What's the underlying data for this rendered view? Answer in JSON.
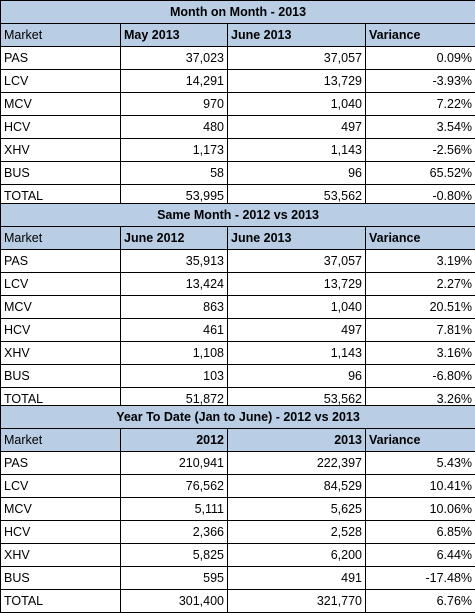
{
  "tables": [
    {
      "title": "Month on Month - 2013",
      "headers": [
        "Market",
        "May 2013",
        "June 2013",
        "Variance"
      ],
      "rows": [
        [
          "PAS",
          "37,023",
          "37,057",
          "0.09%"
        ],
        [
          "LCV",
          "14,291",
          "13,729",
          "-3.93%"
        ],
        [
          "MCV",
          "970",
          "1,040",
          "7.22%"
        ],
        [
          "HCV",
          "480",
          "497",
          "3.54%"
        ],
        [
          "XHV",
          "1,173",
          "1,143",
          "-2.56%"
        ],
        [
          "BUS",
          "58",
          "96",
          "65.52%"
        ],
        [
          "TOTAL",
          "53,995",
          "53,562",
          "-0.80%"
        ]
      ]
    },
    {
      "title": "Same Month - 2012 vs 2013",
      "headers": [
        "Market",
        "June 2012",
        "June 2013",
        "Variance"
      ],
      "rows": [
        [
          "PAS",
          "35,913",
          "37,057",
          "3.19%"
        ],
        [
          "LCV",
          "13,424",
          "13,729",
          "2.27%"
        ],
        [
          "MCV",
          "863",
          "1,040",
          "20.51%"
        ],
        [
          "HCV",
          "461",
          "497",
          "7.81%"
        ],
        [
          "XHV",
          "1,108",
          "1,143",
          "3.16%"
        ],
        [
          "BUS",
          "103",
          "96",
          "-6.80%"
        ],
        [
          "TOTAL",
          "51,872",
          "53,562",
          "3.26%"
        ]
      ]
    },
    {
      "title": "Year To Date (Jan to June) - 2012 vs 2013",
      "headers": [
        "Market",
        "2012",
        "2013",
        "Variance"
      ],
      "rows": [
        [
          "PAS",
          "210,941",
          "222,397",
          "5.43%"
        ],
        [
          "LCV",
          "76,562",
          "84,529",
          "10.41%"
        ],
        [
          "MCV",
          "5,111",
          "5,625",
          "10.06%"
        ],
        [
          "HCV",
          "2,366",
          "2,528",
          "6.85%"
        ],
        [
          "XHV",
          "5,825",
          "6,200",
          "6.44%"
        ],
        [
          "BUS",
          "595",
          "491",
          "-17.48%"
        ],
        [
          "TOTAL",
          "301,400",
          "321,770",
          "6.76%"
        ]
      ]
    }
  ]
}
